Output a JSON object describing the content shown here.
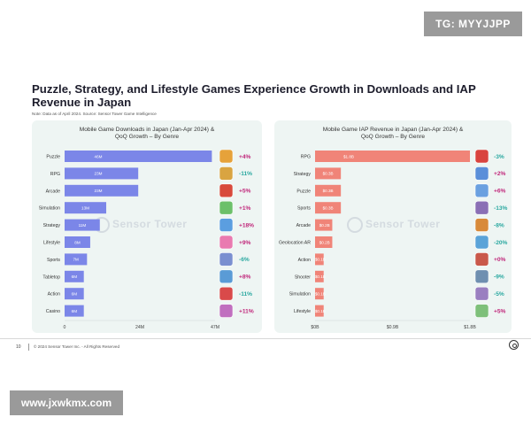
{
  "watermarks": {
    "top": "TG: MYYJJPP",
    "bottom": "www.jxwkmx.com"
  },
  "header": {
    "title": "Puzzle, Strategy, and Lifestyle Games Experience Growth in Downloads and IAP Revenue in Japan",
    "note": "Note: Data as of April 2024. Source: Sensor Tower Game Intelligence"
  },
  "footer": {
    "page": "10",
    "copyright": "© 2024 Sensor Tower Inc. - All Rights Reserved"
  },
  "colors": {
    "downloads_bar": "#7b86e8",
    "revenue_bar": "#f08478",
    "growth_positive": "#c0267a",
    "growth_negative": "#2aa8a0",
    "panel_bg": "#eef5f3"
  },
  "chart_data": [
    {
      "type": "bar",
      "orientation": "horizontal",
      "title_line1": "Mobile Game Downloads in Japan (Jan-Apr 2024) &",
      "title_line2": "QoQ Growth – By Genre",
      "watermark": "Sensor Tower",
      "categories": [
        "Puzzle",
        "RPG",
        "Arcade",
        "Simulation",
        "Strategy",
        "Lifestyle",
        "Sports",
        "Tabletop",
        "Action",
        "Casino"
      ],
      "values": [
        46,
        23,
        23,
        13,
        11,
        8,
        7,
        6,
        6,
        6
      ],
      "value_labels": [
        "46M",
        "23M",
        "23M",
        "13M",
        "11M",
        "8M",
        "7M",
        "6M",
        "6M",
        "6M"
      ],
      "growth": [
        "+4%",
        "-11%",
        "+5%",
        "+1%",
        "+18%",
        "+9%",
        "-6%",
        "+8%",
        "-11%",
        "+11%"
      ],
      "icons": [
        "puzzle-game-icon",
        "rpg-game-icon",
        "arcade-game-icon",
        "simulation-game-icon",
        "strategy-game-icon",
        "lifestyle-game-icon",
        "sports-game-icon",
        "tabletop-game-icon",
        "action-game-icon",
        "casino-game-icon"
      ],
      "icon_colors": [
        "#e6a23a",
        "#d9a441",
        "#d84a3c",
        "#6cc06a",
        "#5b9ee0",
        "#e97ab0",
        "#7a8fd0",
        "#5a9bd6",
        "#d94a4a",
        "#c06fbf"
      ],
      "x_ticks": [
        "0",
        "24M",
        "47M"
      ],
      "x_tick_values": [
        0,
        23.5,
        47
      ],
      "xlim": [
        0,
        47
      ]
    },
    {
      "type": "bar",
      "orientation": "horizontal",
      "title_line1": "Mobile Game IAP Revenue in Japan (Jan-Apr 2024) &",
      "title_line2": "QoQ Growth – By Genre",
      "watermark": "Sensor Tower",
      "categories": [
        "RPG",
        "Strategy",
        "Puzzle",
        "Sports",
        "Arcade",
        "Geolocation AR",
        "Action",
        "Shooter",
        "Simulation",
        "Lifestyle"
      ],
      "values": [
        1.8,
        0.3,
        0.3,
        0.3,
        0.2,
        0.2,
        0.1,
        0.1,
        0.1,
        0.1
      ],
      "value_labels": [
        "$1.8B",
        "$0.3B",
        "$0.3B",
        "$0.3B",
        "$0.2B",
        "$0.2B",
        "$0.1B",
        "$0.1B",
        "$0.1B",
        "$0.1B"
      ],
      "growth": [
        "-3%",
        "+2%",
        "+6%",
        "-13%",
        "-8%",
        "-20%",
        "+0%",
        "-9%",
        "-5%",
        "+5%"
      ],
      "icons": [
        "rpg-game-icon",
        "strategy-game-icon",
        "puzzle-game-icon",
        "sports-game-icon",
        "arcade-game-icon",
        "geolocation-ar-game-icon",
        "action-game-icon",
        "shooter-game-icon",
        "simulation-game-icon",
        "lifestyle-game-icon"
      ],
      "icon_colors": [
        "#d9443f",
        "#5b8fd9",
        "#6aa0e0",
        "#8a6fb5",
        "#d88a3a",
        "#5aa3d8",
        "#c9584a",
        "#6f8fb0",
        "#9a7fc0",
        "#7ec07a"
      ],
      "x_ticks": [
        "$0B",
        "$0.9B",
        "$1.8B"
      ],
      "x_tick_values": [
        0,
        0.9,
        1.8
      ],
      "xlim": [
        0,
        1.8
      ]
    }
  ]
}
